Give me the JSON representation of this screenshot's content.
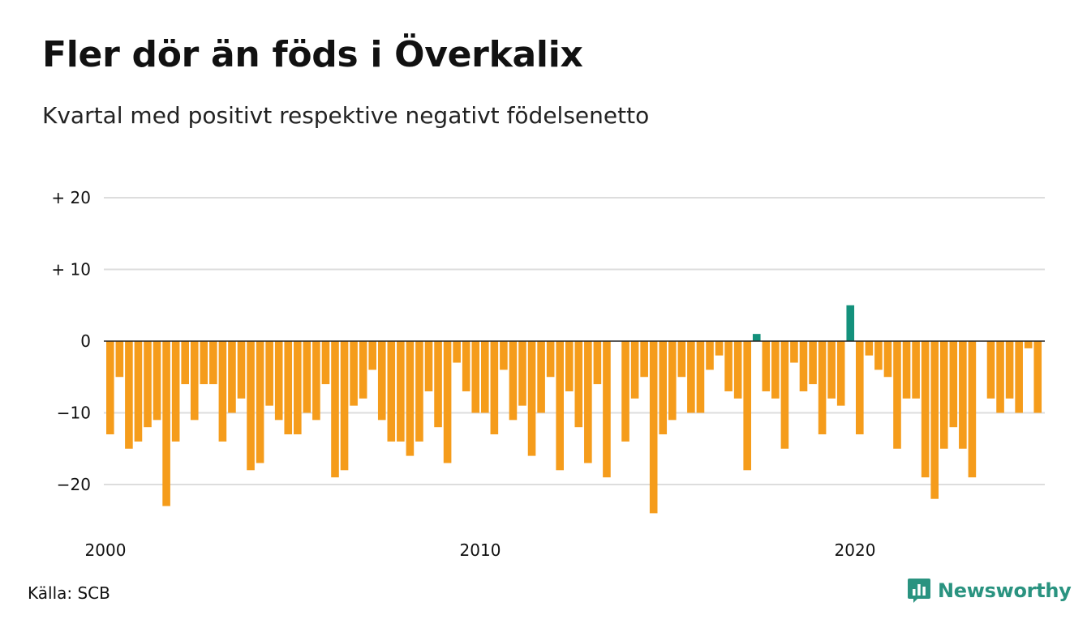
{
  "colors": {
    "negative": "#f59c1b",
    "positive": "#14917c",
    "grid": "#dddddd",
    "zero": "#222222",
    "brand": "#2a9380"
  },
  "chart_data": {
    "type": "bar",
    "title": "Fler dör än föds i Överkalix",
    "subtitle": "Kvartal med positivt respektive negativt födelsenetto",
    "source": "Källa: SCB",
    "x_start": "2000 Q1",
    "x_step": "quarter",
    "x_ticks": [
      "2000",
      "2010",
      "2020"
    ],
    "y_ticks": [
      {
        "value": 20,
        "label": "+ 20"
      },
      {
        "value": 10,
        "label": "+ 10"
      },
      {
        "value": 0,
        "label": "0"
      },
      {
        "value": -10,
        "label": "−10"
      },
      {
        "value": -20,
        "label": "−20"
      }
    ],
    "ylim": [
      -25,
      20
    ],
    "grid": true,
    "values": [
      -13,
      -5,
      -15,
      -14,
      -12,
      -11,
      -23,
      -14,
      -6,
      -11,
      -6,
      -6,
      -14,
      -10,
      -8,
      -18,
      -17,
      -9,
      -11,
      -13,
      -13,
      -10,
      -11,
      -6,
      -19,
      -18,
      -9,
      -8,
      -4,
      -11,
      -14,
      -14,
      -16,
      -14,
      -7,
      -12,
      -17,
      -3,
      -7,
      -10,
      -10,
      -13,
      -4,
      -11,
      -9,
      -16,
      -10,
      -5,
      -18,
      -7,
      -12,
      -17,
      -6,
      -19,
      0,
      -14,
      -8,
      -5,
      -24,
      -13,
      -11,
      -5,
      -10,
      -10,
      -4,
      -2,
      -7,
      -8,
      -18,
      1,
      -7,
      -8,
      -15,
      -3,
      -7,
      -6,
      -13,
      -8,
      -9,
      5,
      -13,
      -2,
      -4,
      -5,
      -15,
      -8,
      -8,
      -19,
      -22,
      -15,
      -12,
      -15,
      -19,
      0,
      -8,
      -10,
      -8,
      -10,
      -1,
      -10
    ]
  },
  "brand": {
    "name": "Newsworthy",
    "logo_icon": "newsworthy-bar-logo-icon"
  }
}
